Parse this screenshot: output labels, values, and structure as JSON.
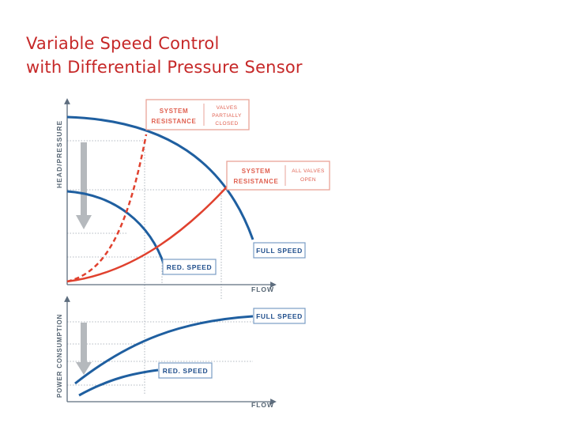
{
  "slide": {
    "title": "Variable Speed Control\nwith Differential Pressure Sensor"
  },
  "top_chart": {
    "y_axis_label": "HEAD/PRESSURE",
    "x_axis_label": "FLOW",
    "box_closed": {
      "left_line1": "SYSTEM",
      "left_line2": "RESISTANCE",
      "right_line1": "VALVES",
      "right_line2": "PARTIALLY",
      "right_line3": "CLOSED"
    },
    "box_open": {
      "left_line1": "SYSTEM",
      "left_line2": "RESISTANCE",
      "right_line1": "ALL VALVES",
      "right_line2": "OPEN"
    },
    "full_speed_label": "FULL SPEED",
    "reduced_speed_label": "RED. SPEED"
  },
  "bottom_chart": {
    "y_axis_label": "POWER CONSUMPTION",
    "x_axis_label": "FLOW",
    "full_speed_label": "FULL SPEED",
    "reduced_speed_label": "RED. SPEED"
  },
  "colors": {
    "pump_curve": "#1f5fa0",
    "system_curve": "#e0412e",
    "grid": "#9aa3ad",
    "arrow": "#b5b9bd"
  }
}
